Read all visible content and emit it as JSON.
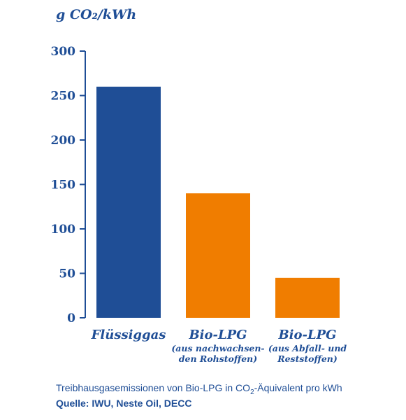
{
  "chart_data": {
    "type": "bar",
    "ylabel": "g CO₂/kWh",
    "ylim": [
      0,
      300
    ],
    "yticks": [
      "0",
      "50",
      "100",
      "150",
      "200",
      "250",
      "300"
    ],
    "categories": [
      {
        "name": "Flüssiggas",
        "sub": []
      },
      {
        "name": "Bio-LPG",
        "sub": [
          "(aus nachwachsen-",
          "den Rohstoffen)"
        ]
      },
      {
        "name": "Bio-LPG",
        "sub": [
          "(aus Abfall- und",
          "Reststoffen)"
        ]
      }
    ],
    "values": [
      260,
      140,
      45
    ],
    "colors": [
      "#1f4e96",
      "#f07d00",
      "#f07d00"
    ],
    "grid": false
  },
  "caption": {
    "before": "Treibhausgasemissionen von Bio-LPG in CO",
    "sub": "2",
    "after": "-Äquivalent pro kWh"
  },
  "source": "Quelle: IWU, Neste Oil, DECC"
}
